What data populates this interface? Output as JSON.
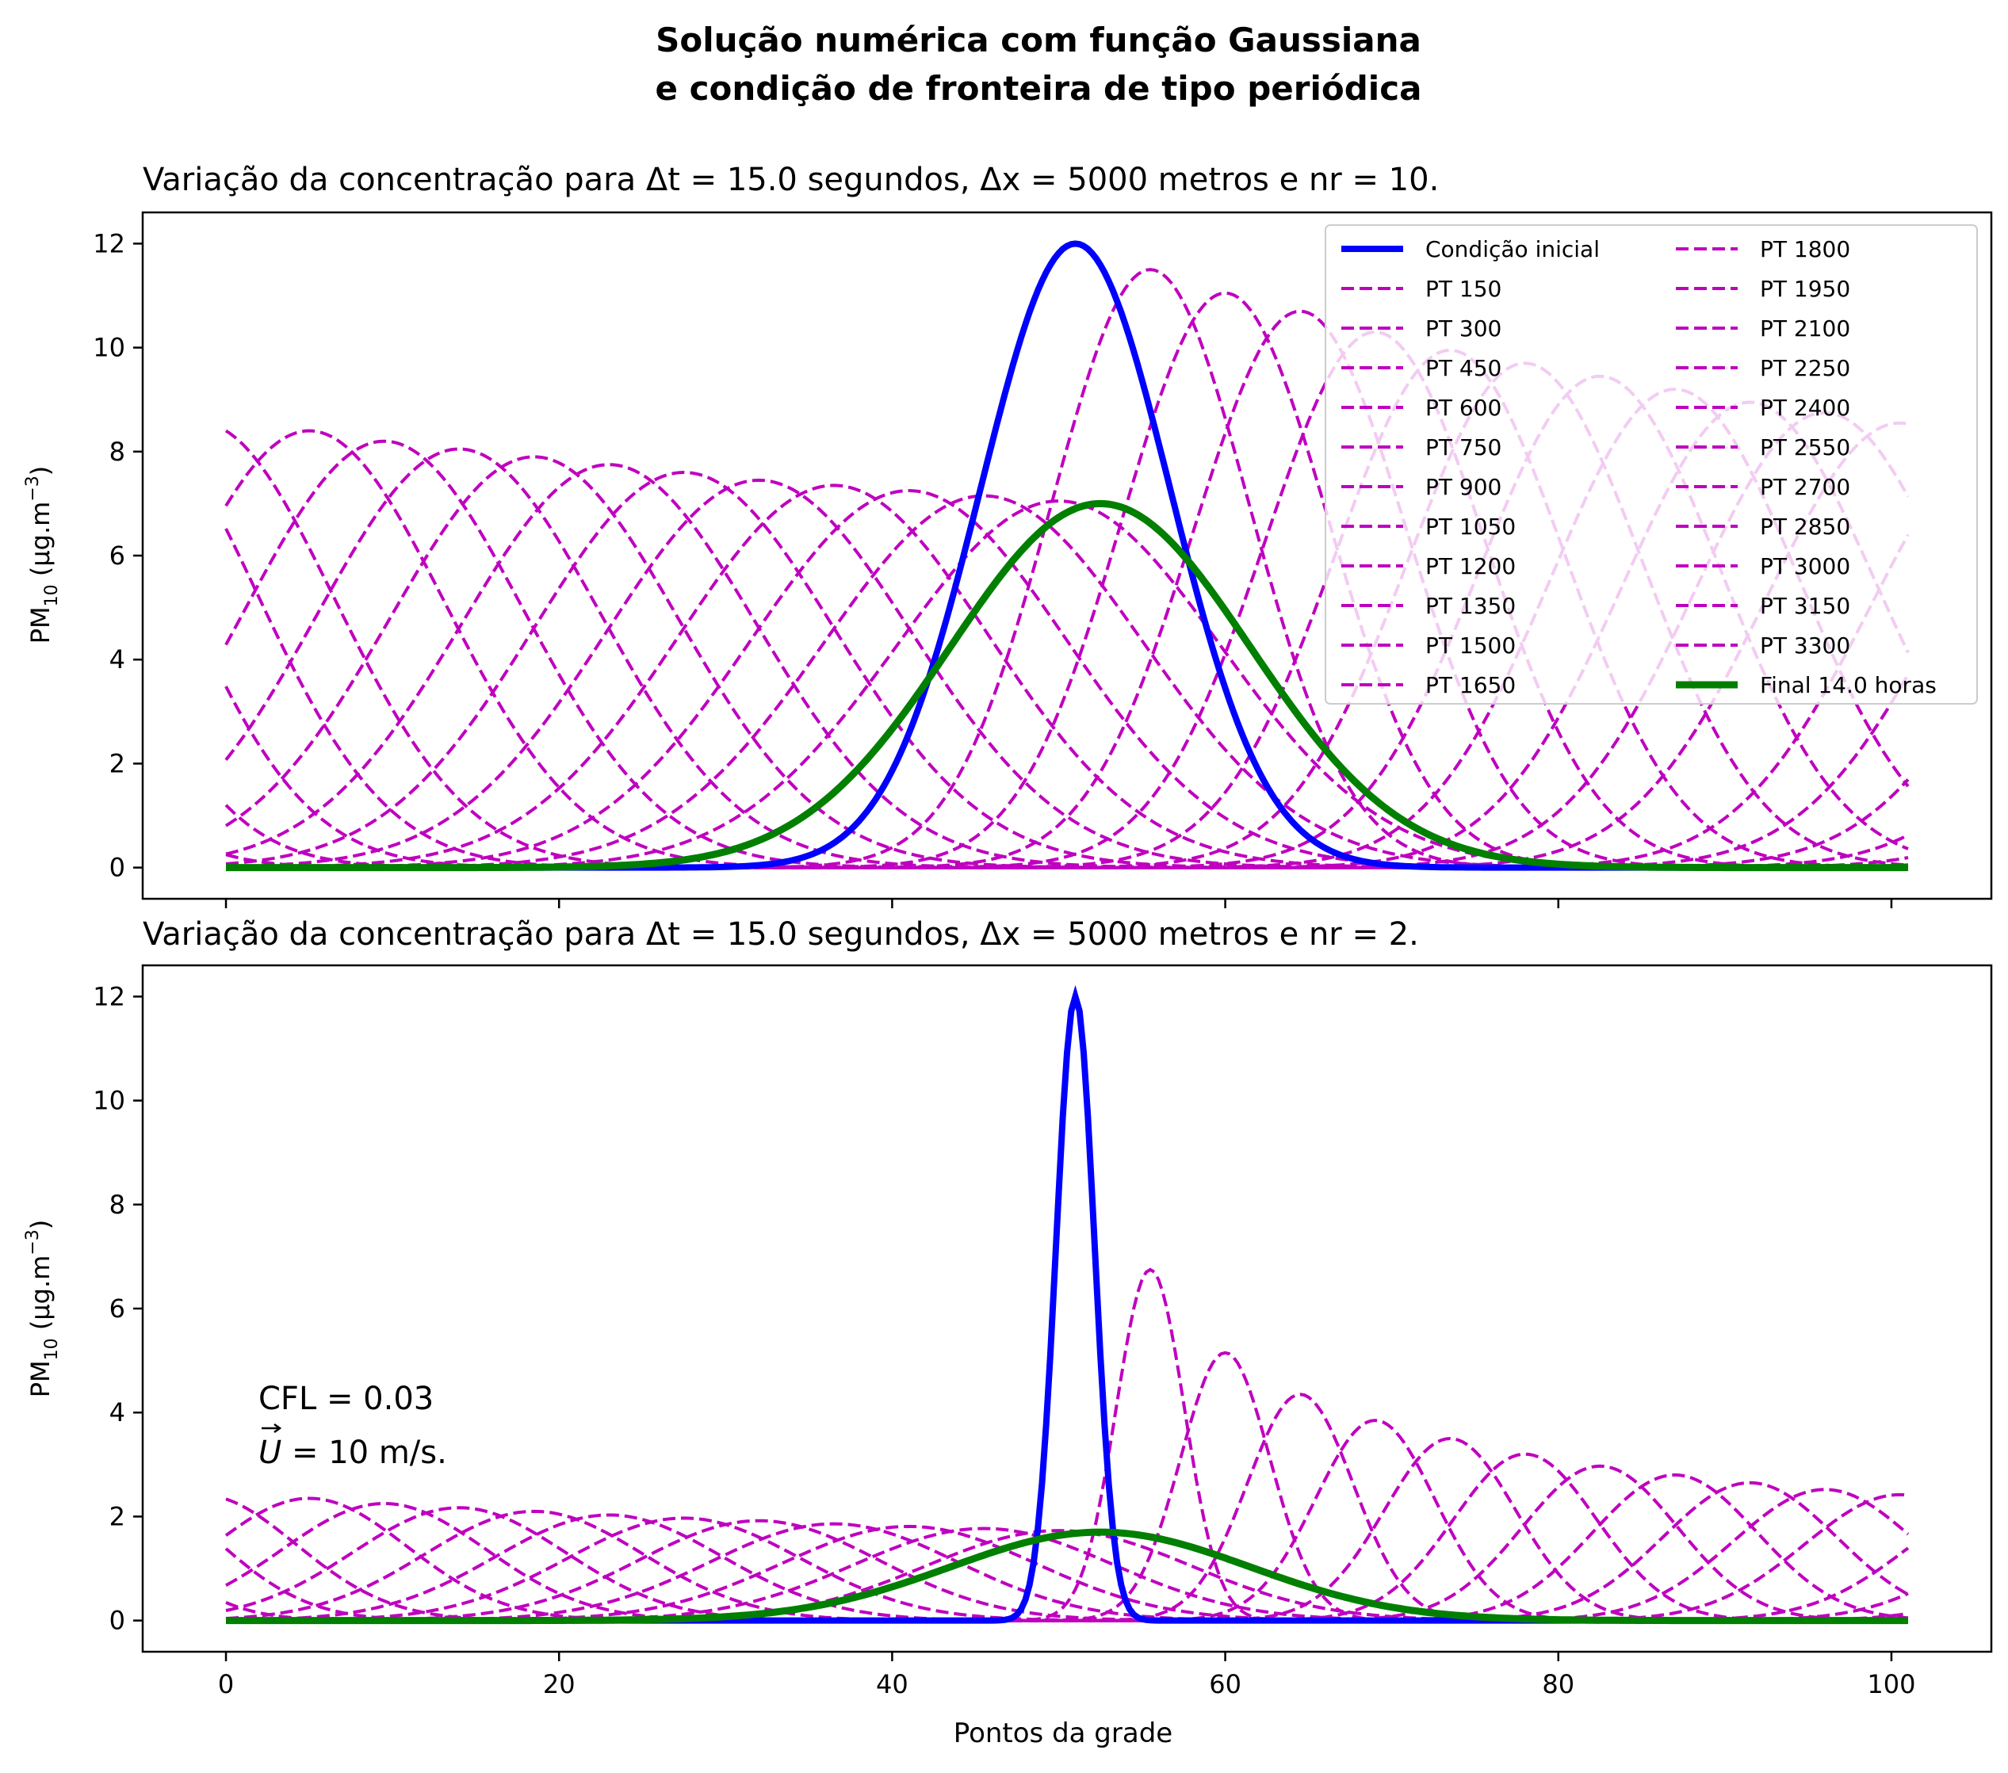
{
  "figure": {
    "title_line1": "Solução numérica com função Gaussiana",
    "title_line2": "e condição de fronteira de tipo periódica"
  },
  "colors": {
    "initial": "#0000ff",
    "intermediate": "#bf00bf",
    "final": "#007f00"
  },
  "chart_data": [
    {
      "type": "line",
      "title": "Variação da concentração para Δt = 15.0 segundos, Δx = 5000 metros e nr = 10.",
      "xlabel": "",
      "ylabel_main": "PM",
      "ylabel_sub": "10",
      "ylabel_rest": " (μg.m",
      "ylabel_sup": "−3",
      "ylabel_end": ")",
      "xlim": [
        -5,
        106
      ],
      "ylim": [
        -0.6,
        12.6
      ],
      "xticks": [
        0,
        20,
        40,
        60,
        80,
        100
      ],
      "xticklabels_shown": false,
      "yticks": [
        0,
        2,
        4,
        6,
        8,
        10,
        12
      ],
      "grid": false,
      "legend_position": "upper-right",
      "legend_columns": 2,
      "initial": {
        "name": "Condição inicial",
        "peak": 12.0,
        "center": 51,
        "sigma": 5.7
      },
      "final": {
        "name": "Final 14.0 horas",
        "peak": 7.0,
        "center": 52.5,
        "sigma": 9.0
      },
      "intermediate_names": [
        "PT 150",
        "PT 300",
        "PT 450",
        "PT 600",
        "PT 750",
        "PT 900",
        "PT 1050",
        "PT 1200",
        "PT 1350",
        "PT 1500",
        "PT 1650",
        "PT 1800",
        "PT 1950",
        "PT 2100",
        "PT 2250",
        "PT 2400",
        "PT 2550",
        "PT 2700",
        "PT 2850",
        "PT 3000",
        "PT 3150",
        "PT 3300"
      ],
      "intermediate_peaks": [
        11.5,
        11.05,
        10.7,
        10.3,
        9.95,
        9.7,
        9.45,
        9.2,
        8.95,
        8.75,
        8.55,
        8.4,
        8.2,
        8.05,
        7.9,
        7.75,
        7.6,
        7.45,
        7.35,
        7.25,
        7.15,
        7.05
      ],
      "intermediate_centers": [
        55.5,
        60,
        64.5,
        69,
        73.5,
        78,
        82.5,
        87,
        91.5,
        96,
        100.5,
        5,
        9.5,
        14,
        18.5,
        23,
        27.5,
        32,
        36.5,
        41,
        45.5,
        50
      ]
    },
    {
      "type": "line",
      "title": "Variação da concentração para Δt = 15.0 segundos, Δx = 5000 metros e nr = 2.",
      "xlabel": "Pontos da grade",
      "ylabel_main": "PM",
      "ylabel_sub": "10",
      "ylabel_rest": " (μg.m",
      "ylabel_sup": "−3",
      "ylabel_end": ")",
      "xlim": [
        -5,
        106
      ],
      "ylim": [
        -0.6,
        12.6
      ],
      "xticks": [
        0,
        20,
        40,
        60,
        80,
        100
      ],
      "xticklabels_shown": true,
      "yticks": [
        0,
        2,
        4,
        6,
        8,
        10,
        12
      ],
      "grid": false,
      "annotation": {
        "line1": "CFL = 0.03",
        "line2_symbol": "U",
        "line2_rest": " = 10 m/s."
      },
      "initial": {
        "name": "Condição inicial",
        "peak": 12.0,
        "center": 51,
        "sigma": 1.15
      },
      "final": {
        "name": "Final 14.0 horas",
        "peak": 1.7,
        "center": 52.5,
        "sigma": 9.0
      },
      "intermediate_peaks": [
        6.75,
        5.15,
        4.35,
        3.85,
        3.5,
        3.2,
        2.97,
        2.8,
        2.65,
        2.52,
        2.42,
        2.35,
        2.25,
        2.17,
        2.1,
        2.03,
        1.97,
        1.92,
        1.86,
        1.81,
        1.77,
        1.73
      ],
      "intermediate_centers": [
        55.5,
        60,
        64.5,
        69,
        73.5,
        78,
        82.5,
        87,
        91.5,
        96,
        100.5,
        5,
        9.5,
        14,
        18.5,
        23,
        27.5,
        32,
        36.5,
        41,
        45.5,
        50
      ]
    }
  ]
}
